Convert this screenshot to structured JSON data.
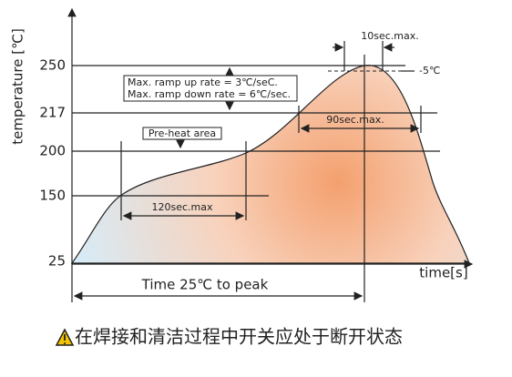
{
  "y_axis": {
    "label": "temperature [℃]",
    "ticks": [
      "250",
      "217",
      "200",
      "150",
      "25"
    ]
  },
  "x_axis": {
    "label": "time[s]"
  },
  "annotations": {
    "peak_time": "10sec.max.",
    "peak_tolerance": "-5℃",
    "ramp_up": "Max. ramp up rate = 3℃/seC.",
    "ramp_down": "Max. ramp down rate = 6℃/sec.",
    "preheat": "Pre-heat area",
    "preheat_time": "120sec.max",
    "reflow_time": "90sec.max.",
    "total_time": "Time 25℃ to peak"
  },
  "caption": "在焊接和清洁过程中开关应处于断开状态"
}
